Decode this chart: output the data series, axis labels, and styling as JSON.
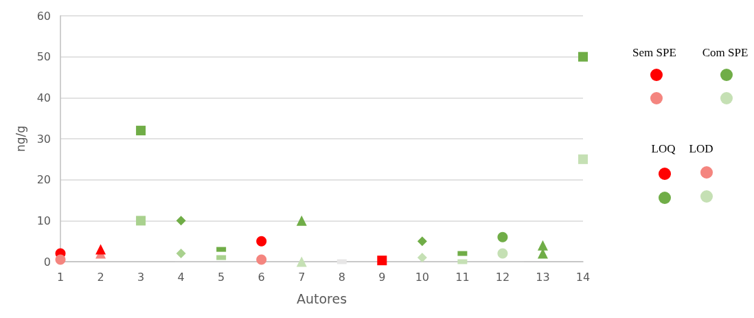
{
  "chart_data": {
    "type": "scatter",
    "xlabel": "Autores",
    "ylabel": "ng/g",
    "xlim": [
      1,
      14
    ],
    "xticks": [
      1,
      2,
      3,
      4,
      5,
      6,
      7,
      8,
      9,
      10,
      11,
      12,
      13,
      14
    ],
    "ylim": [
      0,
      60
    ],
    "yticks": [
      0,
      10,
      20,
      30,
      40,
      50,
      60
    ],
    "grid": "y",
    "annotations": [
      "Sem SPE",
      "Com SPE",
      "LOQ",
      "LOD"
    ],
    "series": [
      {
        "marker": "circle",
        "color": "#ff0000",
        "x": [
          1,
          6
        ],
        "values": [
          2,
          5
        ]
      },
      {
        "marker": "circle",
        "color": "#f4857f",
        "x": [
          1,
          6
        ],
        "values": [
          0.5,
          0.5
        ]
      },
      {
        "marker": "circle",
        "color": "#70ad47",
        "x": [
          12
        ],
        "values": [
          6
        ]
      },
      {
        "marker": "circle",
        "color": "#c5e0b4",
        "x": [
          12
        ],
        "values": [
          2
        ]
      },
      {
        "marker": "triangle",
        "color": "#f4857f",
        "x": [
          2
        ],
        "values": [
          2
        ]
      },
      {
        "marker": "triangle",
        "color": "#ff0000",
        "x": [
          2
        ],
        "values": [
          3
        ]
      },
      {
        "marker": "square",
        "color": "#ff0000",
        "x": [
          9
        ],
        "values": [
          0.3
        ]
      },
      {
        "marker": "square",
        "color": "#70ad47",
        "x": [
          3,
          14
        ],
        "values": [
          32,
          50
        ]
      },
      {
        "marker": "square",
        "color": "#a9d18e",
        "x": [
          3
        ],
        "values": [
          10
        ]
      },
      {
        "marker": "square",
        "color": "#c5e0b4",
        "x": [
          14
        ],
        "values": [
          25
        ]
      },
      {
        "marker": "diamond",
        "color": "#70ad47",
        "x": [
          4,
          10
        ],
        "values": [
          10,
          5
        ]
      },
      {
        "marker": "diamond",
        "color": "#a9d18e",
        "x": [
          4
        ],
        "values": [
          2
        ]
      },
      {
        "marker": "diamond",
        "color": "#c5e0b4",
        "x": [
          10
        ],
        "values": [
          1
        ]
      },
      {
        "color": "#70ad47",
        "x": [
          5,
          11
        ],
        "values": [
          3,
          2
        ]
      },
      {
        "color": "#a9d18e",
        "x": [
          5
        ],
        "values": [
          1
        ]
      },
      {
        "color": "#c5e0b4",
        "x": [
          11
        ],
        "values": [
          0
        ]
      },
      {
        "color": "#e7e6e6",
        "x": [
          8
        ],
        "values": [
          0
        ]
      },
      {
        "marker": "triangle",
        "color": "#70ad47",
        "x": [
          7,
          13,
          13
        ],
        "values": [
          10,
          4,
          2
        ]
      },
      {
        "marker": "triangle",
        "color": "#c5e0b4",
        "x": [
          7
        ],
        "values": [
          0
        ]
      }
    ]
  }
}
